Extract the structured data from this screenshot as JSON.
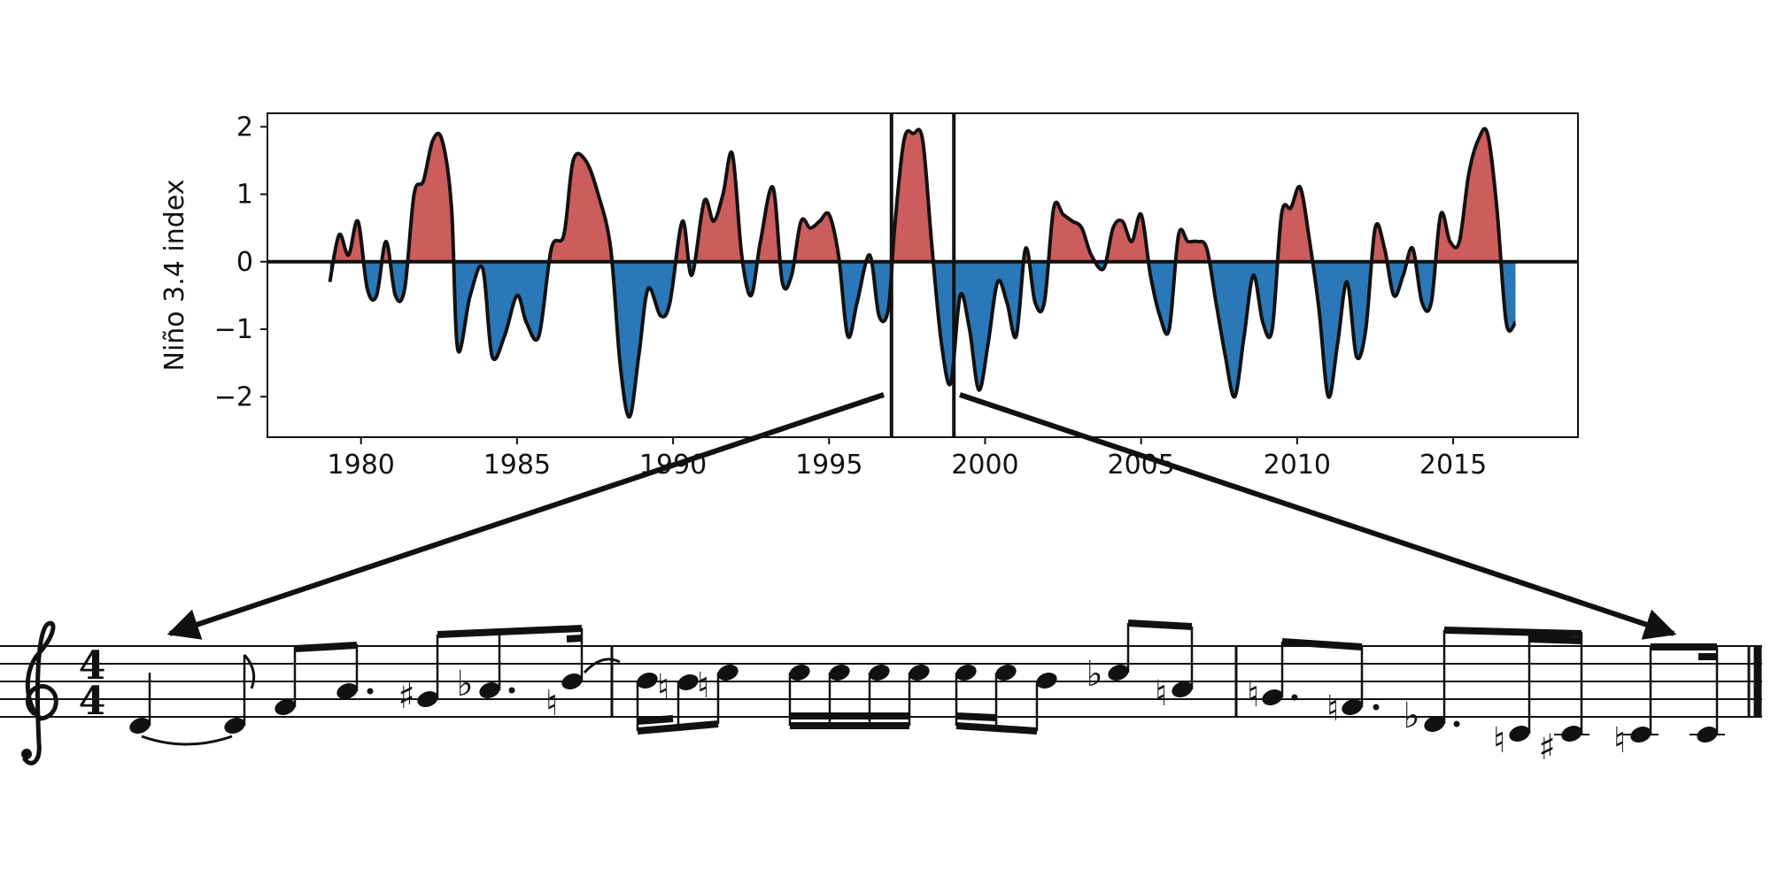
{
  "chart_data": {
    "type": "area",
    "title": "",
    "ylabel": "Niño 3.4 index",
    "xlabel": "",
    "xlim": [
      1977,
      2019
    ],
    "ylim": [
      -2.6,
      2.2
    ],
    "x_ticks": [
      1980,
      1985,
      1990,
      1995,
      2000,
      2005,
      2010,
      2015
    ],
    "y_ticks": [
      -2,
      -1,
      0,
      1,
      2
    ],
    "positive_color": "#cd5c5c",
    "negative_color": "#2a78b8",
    "grid": false,
    "legend": "none",
    "highlight_window": [
      1997,
      1999
    ],
    "series": [
      {
        "x": [
          1979.0,
          1979.3,
          1979.6,
          1979.9,
          1980.2,
          1980.5,
          1980.8,
          1981.1,
          1981.4,
          1981.7,
          1982.0,
          1982.3,
          1982.6,
          1982.9,
          1983.1,
          1983.5,
          1983.9,
          1984.2,
          1984.6,
          1985.0,
          1985.3,
          1985.7,
          1986.1,
          1986.5,
          1986.8,
          1987.2,
          1987.6,
          1988.0,
          1988.3,
          1988.6,
          1988.9,
          1989.2,
          1989.6,
          1989.9,
          1990.3,
          1990.6,
          1991.0,
          1991.3,
          1991.6,
          1991.9,
          1992.2,
          1992.5,
          1992.8,
          1993.2,
          1993.5,
          1993.8,
          1994.1,
          1994.4,
          1994.7,
          1995.0,
          1995.3,
          1995.6,
          1995.9,
          1996.3,
          1996.6,
          1996.9,
          1997.1,
          1997.4,
          1997.7,
          1998.0,
          1998.3,
          1998.6,
          1998.9,
          1999.2,
          1999.5,
          1999.8,
          2000.1,
          2000.4,
          2000.7,
          2001.0,
          2001.3,
          2001.6,
          2001.9,
          2002.2,
          2002.5,
          2002.8,
          2003.1,
          2003.4,
          2003.8,
          2004.1,
          2004.4,
          2004.7,
          2005.0,
          2005.3,
          2005.6,
          2005.9,
          2006.2,
          2006.5,
          2006.8,
          2007.1,
          2007.4,
          2007.7,
          2008.0,
          2008.3,
          2008.6,
          2008.9,
          2009.2,
          2009.5,
          2009.8,
          2010.1,
          2010.4,
          2010.7,
          2011.0,
          2011.3,
          2011.6,
          2011.9,
          2012.2,
          2012.5,
          2012.8,
          2013.1,
          2013.4,
          2013.7,
          2014.0,
          2014.3,
          2014.6,
          2014.9,
          2015.2,
          2015.5,
          2015.8,
          2016.1,
          2016.4,
          2016.7,
          2017.0
        ],
        "values": [
          -0.3,
          0.4,
          0.1,
          0.6,
          -0.4,
          -0.5,
          0.3,
          -0.5,
          -0.4,
          1.0,
          1.2,
          1.8,
          1.8,
          0.8,
          -1.3,
          -0.5,
          -0.1,
          -1.4,
          -1.1,
          -0.5,
          -0.9,
          -1.1,
          0.2,
          0.4,
          1.5,
          1.5,
          1.0,
          0.2,
          -1.5,
          -2.3,
          -1.4,
          -0.4,
          -0.8,
          -0.6,
          0.6,
          -0.2,
          0.9,
          0.6,
          1.0,
          1.6,
          0.1,
          -0.5,
          0.3,
          1.1,
          -0.3,
          -0.2,
          0.6,
          0.5,
          0.6,
          0.7,
          0.1,
          -1.1,
          -0.6,
          0.1,
          -0.8,
          -0.7,
          0.5,
          1.8,
          1.9,
          1.8,
          0.2,
          -1.2,
          -1.8,
          -0.5,
          -1.0,
          -1.9,
          -1.2,
          -0.3,
          -0.6,
          -1.1,
          0.2,
          -0.6,
          -0.6,
          0.8,
          0.7,
          0.6,
          0.5,
          0.1,
          -0.1,
          0.5,
          0.6,
          0.3,
          0.7,
          -0.2,
          -0.8,
          -1.0,
          0.4,
          0.3,
          0.3,
          0.2,
          -0.6,
          -1.4,
          -2.0,
          -1.1,
          -0.2,
          -0.9,
          -1.0,
          0.7,
          0.8,
          1.1,
          0.3,
          -0.7,
          -2.0,
          -1.2,
          -0.3,
          -1.4,
          -1.0,
          0.5,
          0.2,
          -0.5,
          -0.2,
          0.2,
          -0.6,
          -0.6,
          0.7,
          0.3,
          0.3,
          1.3,
          1.8,
          1.9,
          0.8,
          -0.9,
          -0.9
        ]
      }
    ]
  },
  "score": {
    "time_signature_top": "4",
    "time_signature_bottom": "4"
  },
  "colors": {
    "ink": "#111111",
    "positive": "#cd5c5c",
    "negative": "#2a78b8"
  }
}
